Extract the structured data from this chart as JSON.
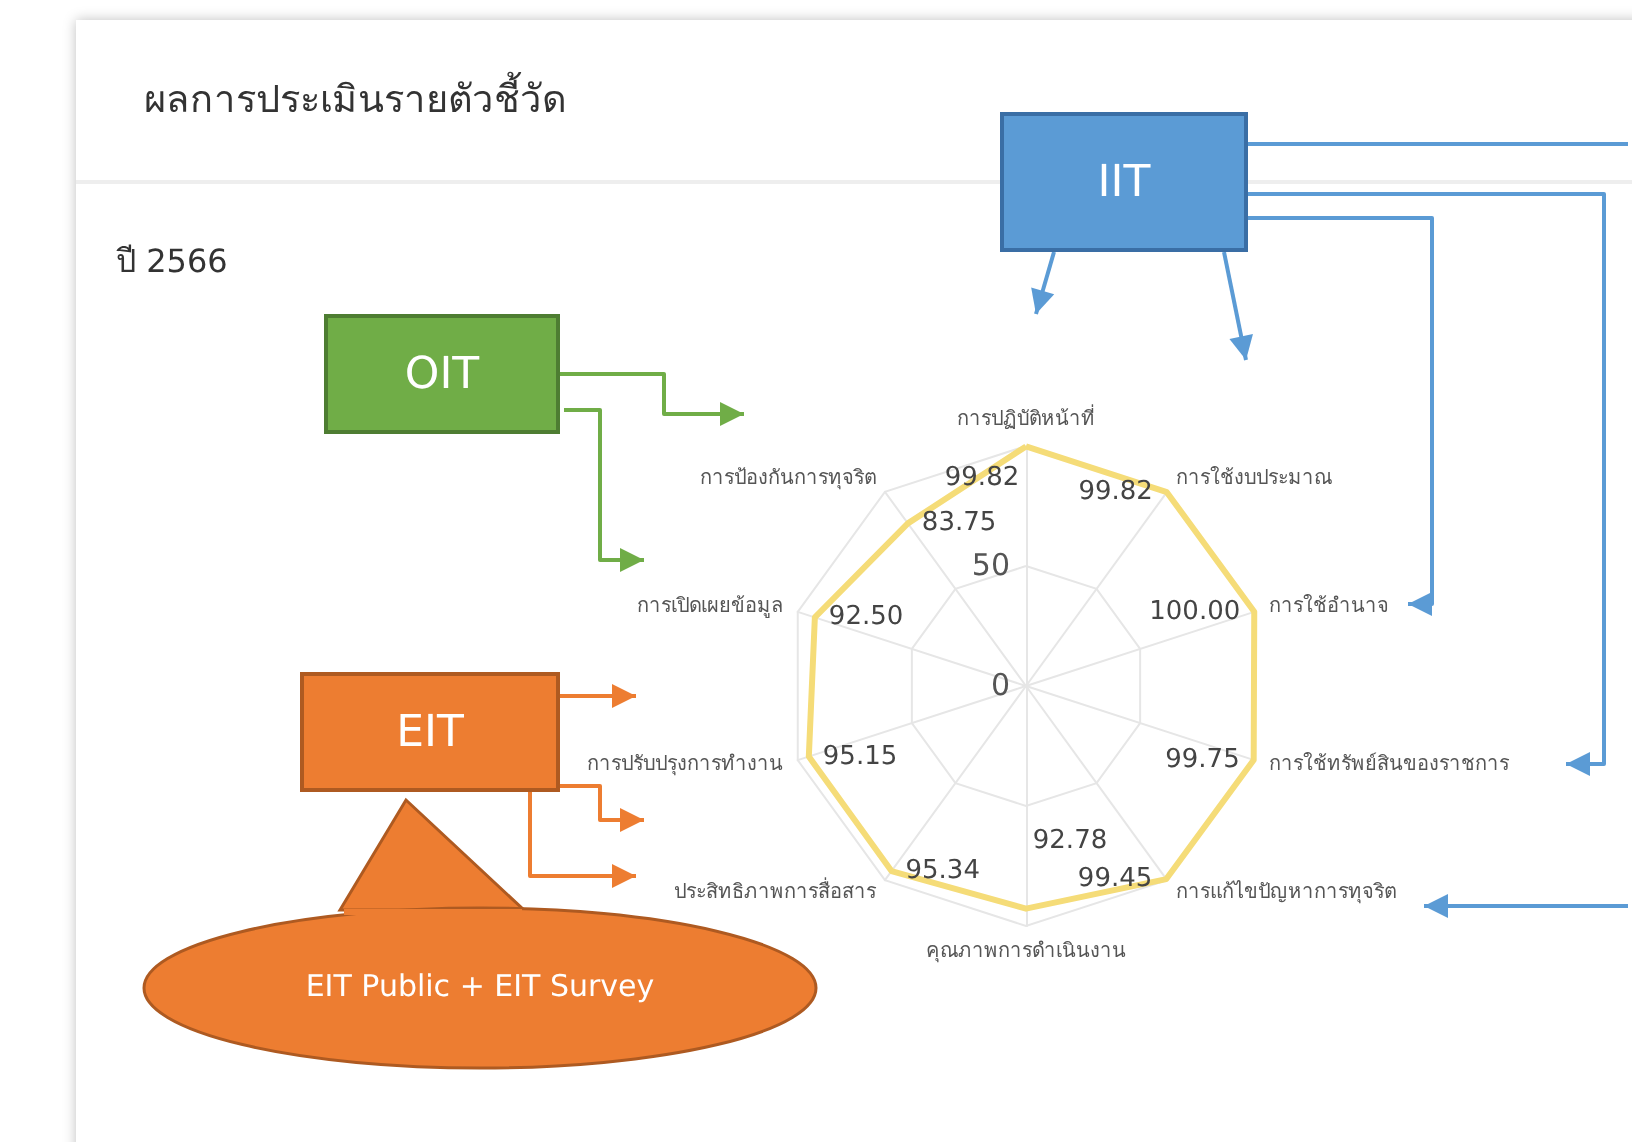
{
  "chart_data": {
    "type": "radar",
    "title": "ผลการประเมินรายตัวชี้วัด",
    "subtitle": "ปี 2566",
    "categories": [
      "การปฏิบัติหน้าที่",
      "การใช้งบประมาณ",
      "การใช้อำนาจ",
      "การใช้ทรัพย์สินของราชการ",
      "การแก้ไขปัญหาการทุจริต",
      "คุณภาพการดำเนินงาน",
      "ประสิทธิภาพการสื่อสาร",
      "การปรับปรุงการทำงาน",
      "การเปิดเผยข้อมูล",
      "การป้องกันการทุจริต"
    ],
    "series": [
      {
        "color": "#f5dc78",
        "values": [
          99.82,
          99.82,
          100.0,
          99.75,
          99.45,
          92.78,
          95.34,
          95.15,
          92.5,
          83.75
        ],
        "value_labels": [
          "99.82",
          "99.82",
          "100.00",
          "99.75",
          "99.45",
          "92.78",
          "95.34",
          "95.15",
          "92.50",
          "83.75"
        ]
      }
    ],
    "ylim": [
      0,
      100
    ],
    "yticks": [
      0,
      50
    ],
    "marker": "none",
    "line_style": "solid",
    "annotations": [
      "IIT",
      "OIT",
      "EIT",
      "EIT Public + EIT Survey"
    ]
  }
}
